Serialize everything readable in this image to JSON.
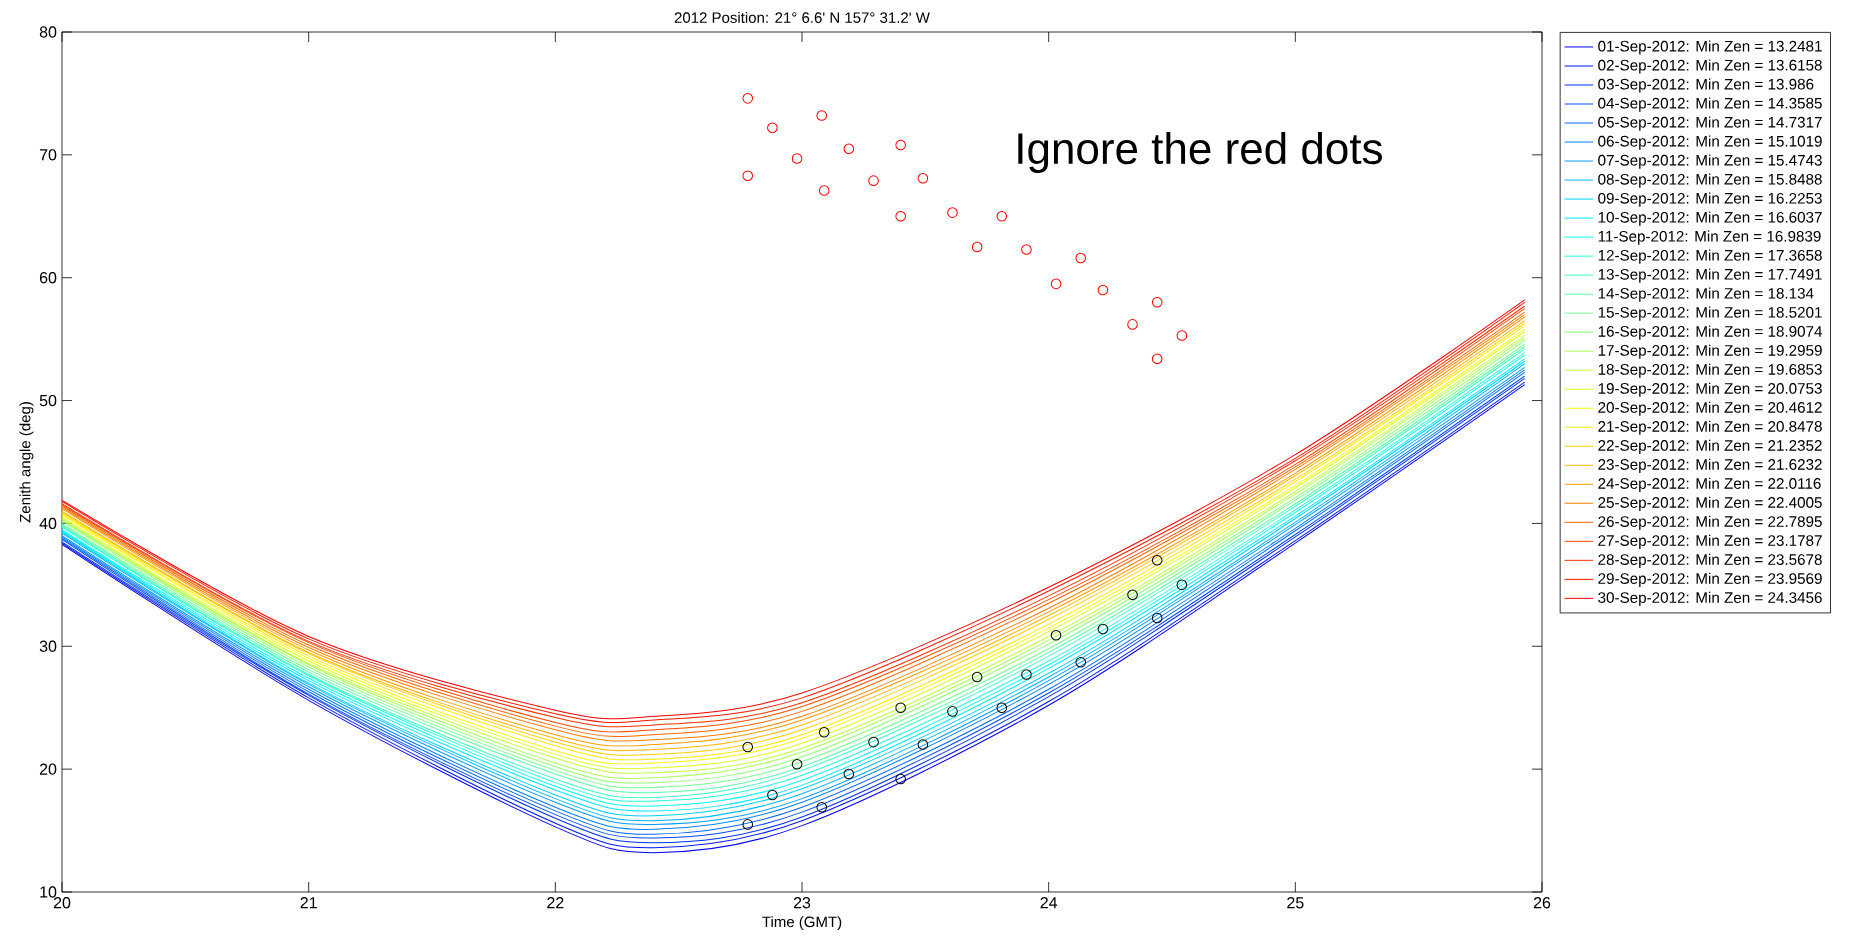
{
  "chart_data": {
    "type": "line",
    "title": "2012   Position: 21° 6.6' N   157° 31.2' W",
    "xlabel": "Time (GMT)",
    "ylabel": "Zenith angle (deg)",
    "annotations": [
      "Ignore the red dots"
    ],
    "xlim": [
      20,
      26
    ],
    "ylim": [
      10,
      80
    ],
    "xticks": [
      20,
      21,
      22,
      23,
      24,
      25,
      26
    ],
    "yticks": [
      10,
      20,
      30,
      40,
      50,
      60,
      70,
      80
    ],
    "legend": "right",
    "x": [
      20,
      21,
      22,
      22.4,
      23,
      24,
      25,
      25.93
    ],
    "series": [
      {
        "name": "01-Sep-2012: Min Zen = 13.2481",
        "color": "#0000fa",
        "values": [
          38.3,
          25.6,
          15.3,
          13.2,
          15.4,
          25.2,
          38.4,
          51.3
        ]
      },
      {
        "name": "02-Sep-2012: Min Zen = 13.6158",
        "color": "#0016ff",
        "values": [
          38.4,
          25.8,
          15.6,
          13.6,
          15.8,
          25.5,
          38.6,
          51.5
        ]
      },
      {
        "name": "03-Sep-2012: Min Zen = 13.986",
        "color": "#0030ff",
        "values": [
          38.5,
          26.0,
          16.0,
          14.0,
          16.1,
          25.9,
          38.9,
          51.8
        ]
      },
      {
        "name": "04-Sep-2012: Min Zen = 14.3585",
        "color": "#004bff",
        "values": [
          38.7,
          26.1,
          16.3,
          14.4,
          16.5,
          26.2,
          39.1,
          52.0
        ]
      },
      {
        "name": "05-Sep-2012: Min Zen = 14.7317",
        "color": "#0066ff",
        "values": [
          38.8,
          26.3,
          16.6,
          14.7,
          16.9,
          26.5,
          39.4,
          52.3
        ]
      },
      {
        "name": "06-Sep-2012: Min Zen = 15.1019",
        "color": "#0080ff",
        "values": [
          38.9,
          26.5,
          16.9,
          15.1,
          17.3,
          26.9,
          39.6,
          52.5
        ]
      },
      {
        "name": "07-Sep-2012: Min Zen = 15.4743",
        "color": "#009bff",
        "values": [
          39.0,
          26.7,
          17.3,
          15.5,
          17.6,
          27.2,
          39.9,
          52.7
        ]
      },
      {
        "name": "08-Sep-2012: Min Zen = 15.8488",
        "color": "#00b6ff",
        "values": [
          39.2,
          26.9,
          17.6,
          15.8,
          18.0,
          27.5,
          40.1,
          53.0
        ]
      },
      {
        "name": "09-Sep-2012: Min Zen = 16.2253",
        "color": "#00d1ff",
        "values": [
          39.3,
          27.0,
          17.9,
          16.2,
          18.4,
          27.8,
          40.4,
          53.2
        ]
      },
      {
        "name": "10-Sep-2012: Min Zen = 16.6037",
        "color": "#00ebff",
        "values": [
          39.4,
          27.2,
          18.3,
          16.6,
          18.7,
          28.2,
          40.6,
          53.4
        ]
      },
      {
        "name": "11-Sep-2012: Min Zen = 16.9839",
        "color": "#07fff8",
        "values": [
          39.5,
          27.4,
          18.6,
          17.0,
          19.1,
          28.5,
          40.9,
          53.7
        ]
      },
      {
        "name": "12-Sep-2012: Min Zen = 17.3658",
        "color": "#22ffdd",
        "values": [
          39.7,
          27.6,
          18.9,
          17.4,
          19.5,
          28.8,
          41.1,
          53.9
        ]
      },
      {
        "name": "13-Sep-2012: Min Zen = 17.7491",
        "color": "#3dffc2",
        "values": [
          39.8,
          27.7,
          19.2,
          17.7,
          19.9,
          29.2,
          41.4,
          54.2
        ]
      },
      {
        "name": "14-Sep-2012: Min Zen = 18.134",
        "color": "#57ffa8",
        "values": [
          39.9,
          27.9,
          19.6,
          18.1,
          20.2,
          29.5,
          41.6,
          54.4
        ]
      },
      {
        "name": "15-Sep-2012: Min Zen = 18.5201",
        "color": "#72ff8d",
        "values": [
          40.0,
          28.1,
          19.9,
          18.5,
          20.6,
          29.8,
          41.9,
          54.6
        ]
      },
      {
        "name": "16-Sep-2012: Min Zen = 18.9074",
        "color": "#8dff72",
        "values": [
          40.2,
          28.3,
          20.2,
          18.9,
          21.0,
          30.2,
          42.1,
          54.9
        ]
      },
      {
        "name": "17-Sep-2012: Min Zen = 19.2959",
        "color": "#a8ff57",
        "values": [
          40.3,
          28.5,
          20.5,
          19.3,
          21.4,
          30.5,
          42.4,
          55.1
        ]
      },
      {
        "name": "18-Sep-2012: Min Zen = 19.6853",
        "color": "#c2ff3d",
        "values": [
          40.4,
          28.6,
          20.9,
          19.7,
          21.7,
          30.8,
          42.6,
          55.3
        ]
      },
      {
        "name": "19-Sep-2012: Min Zen = 20.0753",
        "color": "#ddff22",
        "values": [
          40.5,
          28.8,
          21.2,
          20.1,
          22.1,
          31.2,
          42.9,
          55.6
        ]
      },
      {
        "name": "20-Sep-2012: Min Zen = 20.4612",
        "color": "#f8ff07",
        "values": [
          40.7,
          29.0,
          21.5,
          20.5,
          22.5,
          31.5,
          43.1,
          55.8
        ]
      },
      {
        "name": "21-Sep-2012: Min Zen = 20.8478",
        "color": "#ffeb00",
        "values": [
          40.8,
          29.2,
          21.9,
          20.8,
          22.8,
          31.8,
          43.4,
          56.1
        ]
      },
      {
        "name": "22-Sep-2012: Min Zen = 21.2352",
        "color": "#ffd100",
        "values": [
          40.9,
          29.4,
          22.2,
          21.2,
          23.2,
          32.2,
          43.6,
          56.3
        ]
      },
      {
        "name": "23-Sep-2012: Min Zen = 21.6232",
        "color": "#ffb600",
        "values": [
          41.0,
          29.5,
          22.5,
          21.6,
          23.6,
          32.5,
          43.9,
          56.5
        ]
      },
      {
        "name": "24-Sep-2012: Min Zen = 22.0116",
        "color": "#ff9b00",
        "values": [
          41.2,
          29.7,
          22.8,
          22.0,
          24.0,
          32.8,
          44.1,
          56.8
        ]
      },
      {
        "name": "25-Sep-2012: Min Zen = 22.4005",
        "color": "#ff8000",
        "values": [
          41.3,
          29.9,
          23.2,
          22.4,
          24.3,
          33.1,
          44.4,
          57.0
        ]
      },
      {
        "name": "26-Sep-2012: Min Zen = 22.7895",
        "color": "#ff6600",
        "values": [
          41.4,
          30.1,
          23.5,
          22.8,
          24.7,
          33.5,
          44.6,
          57.2
        ]
      },
      {
        "name": "27-Sep-2012: Min Zen = 23.1787",
        "color": "#ff4b00",
        "values": [
          41.5,
          30.3,
          23.8,
          23.2,
          25.1,
          33.8,
          44.8,
          57.5
        ]
      },
      {
        "name": "28-Sep-2012: Min Zen = 23.5678",
        "color": "#ff3000",
        "values": [
          41.6,
          30.4,
          24.2,
          23.6,
          25.4,
          34.1,
          45.1,
          57.7
        ]
      },
      {
        "name": "29-Sep-2012: Min Zen = 23.9569",
        "color": "#ff1600",
        "values": [
          41.8,
          30.6,
          24.5,
          24.0,
          25.8,
          34.5,
          45.3,
          58.0
        ]
      },
      {
        "name": "30-Sep-2012: Min Zen = 24.3456",
        "color": "#fa0000",
        "values": [
          41.9,
          30.8,
          24.8,
          24.3,
          26.2,
          34.8,
          45.6,
          58.2
        ]
      },
      {
        "type": "scatter",
        "marker": "circle",
        "color": "#000000",
        "x": [
          22.78,
          22.88,
          23.08,
          22.98,
          22.78,
          23.09,
          23.19,
          23.29,
          23.4,
          23.4,
          23.49,
          23.61,
          23.71,
          23.81,
          23.91,
          24.03,
          24.13,
          24.22,
          24.34,
          24.44,
          24.44,
          24.54
        ],
        "values": [
          15.5,
          17.9,
          16.9,
          20.4,
          21.8,
          23.0,
          19.6,
          22.2,
          19.2,
          25.0,
          22.0,
          24.7,
          27.5,
          25.0,
          27.7,
          30.9,
          28.7,
          31.4,
          34.2,
          37.0,
          32.3,
          35.0
        ]
      },
      {
        "type": "scatter",
        "marker": "circle",
        "color": "#ff0000",
        "x": [
          22.78,
          22.88,
          23.08,
          22.98,
          22.78,
          23.19,
          23.4,
          23.09,
          23.29,
          23.49,
          23.4,
          23.61,
          23.81,
          23.71,
          23.91,
          24.13,
          24.03,
          24.22,
          24.44,
          24.34,
          24.54,
          24.44
        ],
        "values": [
          74.6,
          72.2,
          73.2,
          69.7,
          68.3,
          70.5,
          70.8,
          67.1,
          67.9,
          68.1,
          65.0,
          65.3,
          65.0,
          62.5,
          62.3,
          61.6,
          59.5,
          59.0,
          58.0,
          56.2,
          55.3,
          53.4
        ]
      }
    ]
  }
}
